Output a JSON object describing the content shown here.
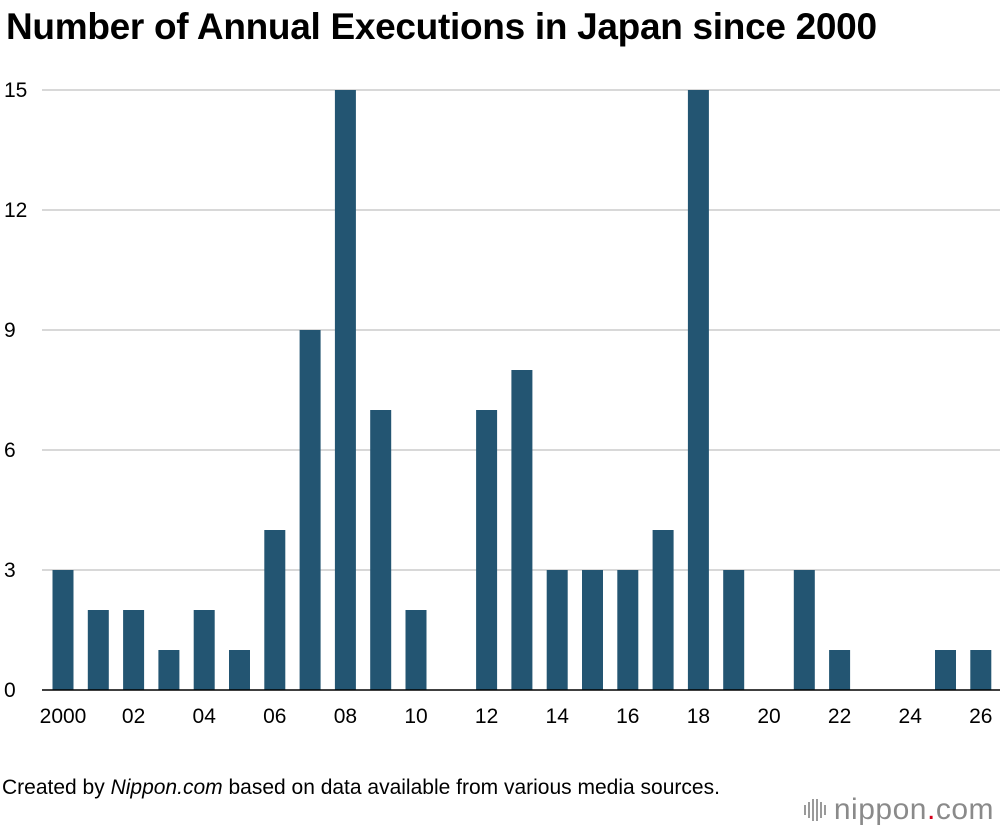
{
  "title": "Number of Annual Executions in Japan since 2000",
  "credit": {
    "prefix": "Created by ",
    "source_name": "Nippon.com",
    "suffix": " based on data available from various media sources."
  },
  "logo": {
    "text_before": "nippon",
    "dot": ".",
    "text_after": "com",
    "dot_color": "#d6001c"
  },
  "colors": {
    "bar": "#235572",
    "grid": "#cccccc"
  },
  "chart_data": {
    "type": "bar",
    "x": [
      2000,
      2001,
      2002,
      2003,
      2004,
      2005,
      2006,
      2007,
      2008,
      2009,
      2010,
      2011,
      2012,
      2013,
      2014,
      2015,
      2016,
      2017,
      2018,
      2019,
      2020,
      2021,
      2022,
      2023,
      2024,
      2025,
      2026
    ],
    "values": [
      3,
      2,
      2,
      1,
      2,
      1,
      4,
      9,
      15,
      7,
      2,
      0,
      7,
      8,
      3,
      3,
      3,
      4,
      15,
      3,
      0,
      3,
      1,
      0,
      0,
      1,
      1
    ],
    "xtick_labels": [
      {
        "year": 2000,
        "label": "2000"
      },
      {
        "year": 2002,
        "label": "02"
      },
      {
        "year": 2004,
        "label": "04"
      },
      {
        "year": 2006,
        "label": "06"
      },
      {
        "year": 2008,
        "label": "08"
      },
      {
        "year": 2010,
        "label": "10"
      },
      {
        "year": 2012,
        "label": "12"
      },
      {
        "year": 2014,
        "label": "14"
      },
      {
        "year": 2016,
        "label": "16"
      },
      {
        "year": 2018,
        "label": "18"
      },
      {
        "year": 2020,
        "label": "20"
      },
      {
        "year": 2022,
        "label": "22"
      },
      {
        "year": 2024,
        "label": "24"
      },
      {
        "year": 2026,
        "label": "26"
      }
    ],
    "yticks": [
      0,
      3,
      6,
      9,
      12,
      15
    ],
    "ylim": [
      0,
      15
    ],
    "grid": true,
    "xlabel": "",
    "ylabel": ""
  }
}
